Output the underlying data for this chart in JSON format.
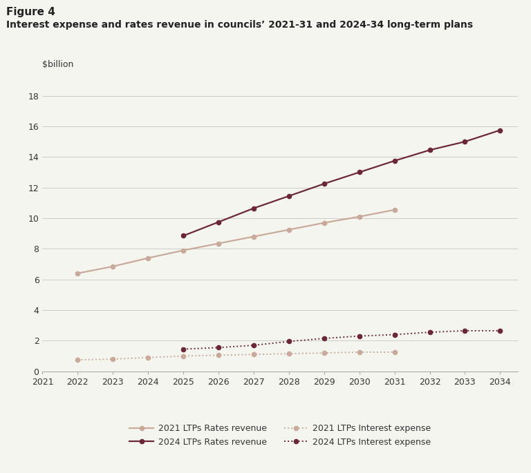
{
  "title_line1": "Figure 4",
  "title_line2": "Interest expense and rates revenue in councils’ 2021-31 and 2024-34 long-term plans",
  "ylabel_inside": "$billion",
  "ylim": [
    0,
    19
  ],
  "yticks": [
    0,
    2,
    4,
    6,
    8,
    10,
    12,
    14,
    16,
    18
  ],
  "xlim": [
    2021,
    2034.5
  ],
  "xticks": [
    2021,
    2022,
    2023,
    2024,
    2025,
    2026,
    2027,
    2028,
    2029,
    2030,
    2031,
    2032,
    2033,
    2034
  ],
  "ltp2021_rates_x": [
    2022,
    2023,
    2024,
    2025,
    2026,
    2027,
    2028,
    2029,
    2030,
    2031
  ],
  "ltp2021_rates_y": [
    6.4,
    6.85,
    7.4,
    7.9,
    8.35,
    8.8,
    9.25,
    9.7,
    10.1,
    10.55
  ],
  "ltp2024_rates_x": [
    2025,
    2026,
    2027,
    2028,
    2029,
    2030,
    2031,
    2032,
    2033,
    2034
  ],
  "ltp2024_rates_y": [
    8.85,
    9.75,
    10.65,
    11.45,
    12.25,
    13.0,
    13.75,
    14.45,
    15.0,
    15.75
  ],
  "ltp2021_interest_x": [
    2022,
    2023,
    2024,
    2025,
    2026,
    2027,
    2028,
    2029,
    2030,
    2031
  ],
  "ltp2021_interest_y": [
    0.75,
    0.8,
    0.9,
    1.0,
    1.05,
    1.1,
    1.15,
    1.2,
    1.25,
    1.25
  ],
  "ltp2024_interest_x": [
    2025,
    2026,
    2027,
    2028,
    2029,
    2030,
    2031,
    2032,
    2033,
    2034
  ],
  "ltp2024_interest_y": [
    1.45,
    1.55,
    1.7,
    1.95,
    2.15,
    2.3,
    2.4,
    2.55,
    2.65,
    2.65
  ],
  "color_2021": "#c9a99a",
  "color_2024": "#6b2737",
  "background_color": "#f5f5f0",
  "plot_bg_color": "#f5f5f0",
  "grid_color": "#cccccc",
  "legend_labels": [
    "2021 LTPs Rates revenue",
    "2024 LTPs Rates revenue",
    "2021 LTPs Interest expense",
    "2024 LTPs Interest expense"
  ]
}
